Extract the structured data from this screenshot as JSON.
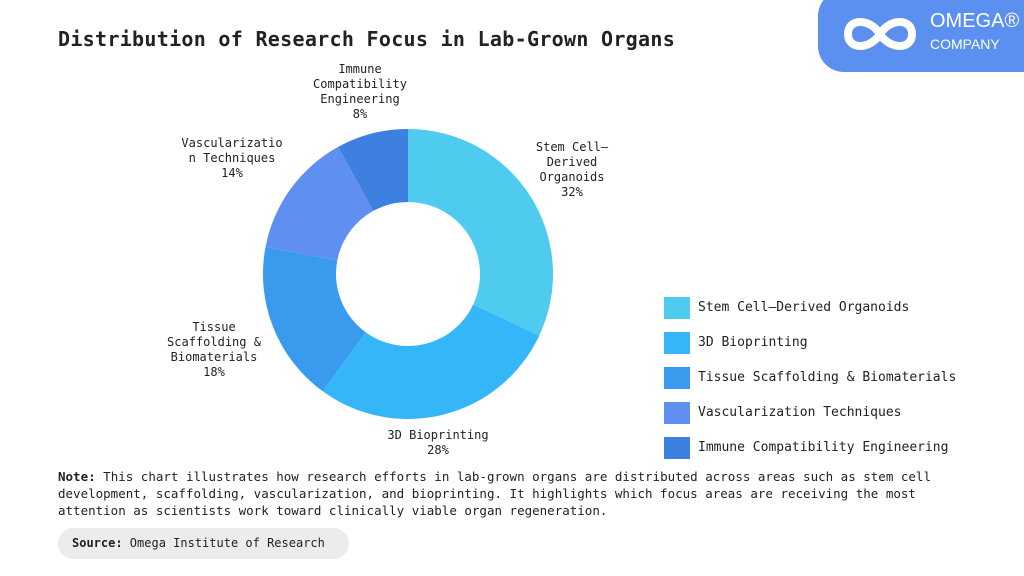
{
  "title": "Distribution of Research Focus in Lab-Grown Organs",
  "logo": {
    "line1": "OMEGA®",
    "line2": "COMPANY"
  },
  "chart_data": {
    "type": "pie",
    "donut": true,
    "title": "Distribution of Research Focus in Lab-Grown Organs",
    "categories": [
      "Stem Cell–Derived Organoids",
      "3D Bioprinting",
      "Tissue Scaffolding & Biomaterials",
      "Vascularization Techniques",
      "Immune Compatibility Engineering"
    ],
    "values": [
      32,
      28,
      18,
      14,
      8
    ],
    "labels": [
      "Stem Cell–\nDerived\nOrganoids\n32%",
      "3D Bioprinting\n28%",
      "Tissue\nScaffolding &\nBiomaterials\n18%",
      "Vascularizatio\nn Techniques\n14%",
      "Immune\nCompatibility\nEngineering\n8%"
    ],
    "colors": [
      "#4ecbee",
      "#35b6f8",
      "#3a9bee",
      "#5f8ff0",
      "#3e80e0"
    ],
    "legend_position": "right"
  },
  "note": {
    "label": "Note:",
    "text": " This chart illustrates how research efforts in lab-grown organs are distributed across areas such as stem cell development, scaffolding, vascularization, and bioprinting. It highlights which focus areas are receiving the most attention as scientists work toward clinically viable organ regeneration."
  },
  "source": {
    "label": "Source:",
    "text": " Omega Institute of Research"
  }
}
